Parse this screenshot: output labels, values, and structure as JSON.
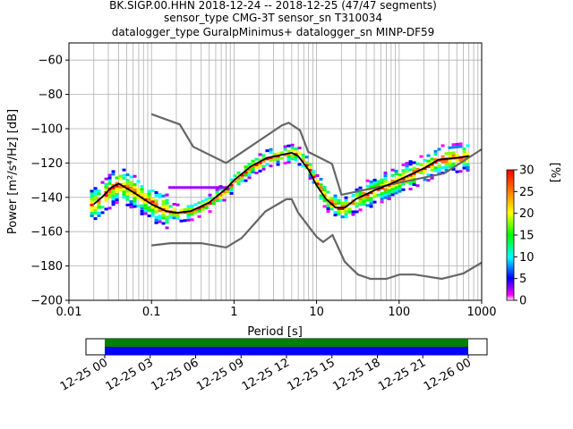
{
  "chart_data": {
    "type": "heatmap",
    "title_lines": [
      "BK.SIGP.00.HHN   2018-12-24 -- 2018-12-25  (47/47 segments)",
      "sensor_type CMG-3T sensor_sn T310034",
      "datalogger_type GuralpMinimus+ datalogger_sn MINP-DF59"
    ],
    "xlabel": "Period [s]",
    "ylabel": "Power [m²/s⁴/Hz] [dB]",
    "x_scale": "log",
    "xlim": [
      0.01,
      1000
    ],
    "ylim": [
      -200,
      -50
    ],
    "xticks": [
      0.01,
      0.1,
      1,
      10,
      100,
      1000
    ],
    "xtick_labels": [
      "0.01",
      "0.1",
      "1",
      "10",
      "100",
      "1000"
    ],
    "yticks": [
      -200,
      -180,
      -160,
      -140,
      -120,
      -100,
      -80,
      -60
    ],
    "ytick_labels": [
      "−200",
      "−180",
      "−160",
      "−140",
      "−120",
      "−100",
      "−80",
      "−60"
    ],
    "grid": true,
    "colorbar": {
      "label": "[%]",
      "range": [
        0,
        30
      ],
      "ticks": [
        0,
        5,
        10,
        15,
        20,
        25,
        30
      ],
      "tick_labels": [
        "0",
        "5",
        "10",
        "15",
        "20",
        "25",
        "30"
      ]
    },
    "series": [
      {
        "role": "new high noise model",
        "color": "#666666",
        "points": [
          [
            0.1,
            -91.5
          ],
          [
            0.22,
            -97.5
          ],
          [
            0.32,
            -110.5
          ],
          [
            0.8,
            -120
          ],
          [
            3.8,
            -98
          ],
          [
            4.6,
            -96.5
          ],
          [
            6.3,
            -101
          ],
          [
            7.9,
            -113.5
          ],
          [
            15.4,
            -120.5
          ],
          [
            20,
            -138.5
          ],
          [
            354,
            -126
          ],
          [
            1000,
            -112
          ]
        ]
      },
      {
        "role": "new low noise model",
        "color": "#666666",
        "points": [
          [
            0.1,
            -168
          ],
          [
            0.17,
            -166.7
          ],
          [
            0.4,
            -166.7
          ],
          [
            0.8,
            -169.2
          ],
          [
            1.24,
            -163.7
          ],
          [
            2.4,
            -148.2
          ],
          [
            4.3,
            -141.1
          ],
          [
            5,
            -141.1
          ],
          [
            6,
            -149
          ],
          [
            10,
            -163
          ],
          [
            12,
            -166
          ],
          [
            15.6,
            -162
          ],
          [
            21.9,
            -177.5
          ],
          [
            31.6,
            -185
          ],
          [
            45,
            -187.5
          ],
          [
            70,
            -187.5
          ],
          [
            101,
            -185
          ],
          [
            154,
            -185
          ],
          [
            328,
            -187.5
          ],
          [
            600,
            -184.4
          ],
          [
            1000,
            -178
          ]
        ]
      },
      {
        "role": "mode",
        "color": "#000000",
        "points": [
          [
            0.02,
            -144
          ],
          [
            0.025,
            -140
          ],
          [
            0.033,
            -134
          ],
          [
            0.04,
            -132
          ],
          [
            0.06,
            -137
          ],
          [
            0.1,
            -144
          ],
          [
            0.15,
            -148
          ],
          [
            0.2,
            -149
          ],
          [
            0.3,
            -148
          ],
          [
            0.5,
            -143
          ],
          [
            0.8,
            -135
          ],
          [
            1,
            -130
          ],
          [
            1.6,
            -122
          ],
          [
            2.5,
            -117
          ],
          [
            4,
            -115
          ],
          [
            5,
            -114
          ],
          [
            6,
            -116
          ],
          [
            8,
            -124
          ],
          [
            10,
            -133
          ],
          [
            13,
            -141
          ],
          [
            17,
            -146
          ],
          [
            22,
            -146
          ],
          [
            30,
            -141
          ],
          [
            50,
            -136
          ],
          [
            80,
            -132
          ],
          [
            120,
            -128
          ],
          [
            200,
            -123
          ],
          [
            300,
            -118
          ],
          [
            500,
            -117
          ],
          [
            700,
            -116
          ]
        ]
      }
    ],
    "heatmap_bands": [
      {
        "x": [
          0.018,
          0.16
        ],
        "y_center": -135,
        "spread": 14
      },
      {
        "x": [
          0.16,
          0.8
        ],
        "y_center": -135,
        "spread": 5
      },
      {
        "x": [
          0.16,
          1.5
        ],
        "y_center": -147,
        "spread": 4
      },
      {
        "x": [
          1.5,
          10
        ],
        "y_center": -118,
        "spread": 5
      },
      {
        "x": [
          10,
          35
        ],
        "y_center": -143,
        "spread": 8
      },
      {
        "x": [
          35,
          700
        ],
        "y_center": -127,
        "spread": 7
      }
    ],
    "time_axis": {
      "tick_labels": [
        "12-25 00",
        "12-25 03",
        "12-25 06",
        "12-25 09",
        "12-25 12",
        "12-25 15",
        "12-25 18",
        "12-25 21",
        "12-26 00"
      ],
      "coverage": [
        {
          "label": "data",
          "color": "#008000",
          "start_hour": 0,
          "end_hour": 24
        },
        {
          "label": "used",
          "color": "#0000ff",
          "start_hour": 0,
          "end_hour": 24
        }
      ]
    }
  }
}
